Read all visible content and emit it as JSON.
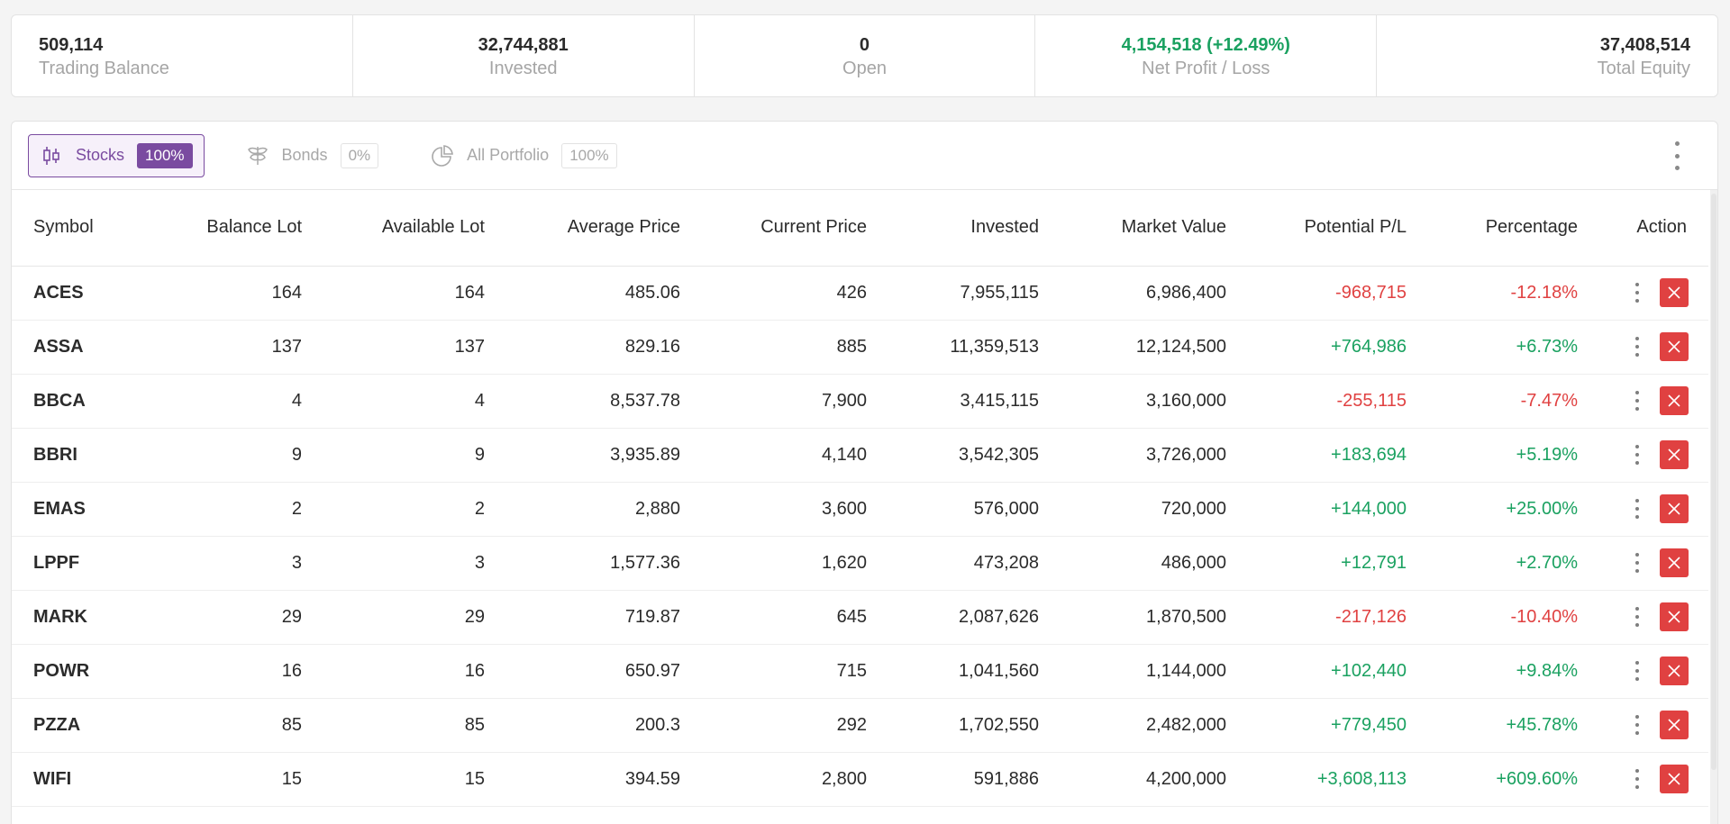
{
  "summary": [
    {
      "value": "509,114",
      "label": "Trading Balance"
    },
    {
      "value": "32,744,881",
      "label": "Invested"
    },
    {
      "value": "0",
      "label": "Open"
    },
    {
      "value": "4,154,518 (+12.49%)",
      "label": "Net Profit / Loss"
    },
    {
      "value": "37,408,514",
      "label": "Total Equity"
    }
  ],
  "tabs": [
    {
      "label": "Stocks",
      "pct": "100%",
      "icon": "candlestick-icon"
    },
    {
      "label": "Bonds",
      "pct": "0%",
      "icon": "bonds-icon"
    },
    {
      "label": "All Portfolio",
      "pct": "100%",
      "icon": "pie-chart-icon"
    }
  ],
  "colors": {
    "accent": "#7a4ba0",
    "positive": "#1aa160",
    "negative": "#e04141"
  },
  "table": {
    "headers": [
      "Symbol",
      "Balance Lot",
      "Available Lot",
      "Average Price",
      "Current Price",
      "Invested",
      "Market Value",
      "Potential P/L",
      "Percentage",
      "Action"
    ],
    "rows": [
      {
        "symbol": "ACES",
        "balance_lot": "164",
        "available_lot": "164",
        "avg_price": "485.06",
        "cur_price": "426",
        "invested": "7,955,115",
        "market_value": "6,986,400",
        "pl": "-968,715",
        "pct": "-12.18%"
      },
      {
        "symbol": "ASSA",
        "balance_lot": "137",
        "available_lot": "137",
        "avg_price": "829.16",
        "cur_price": "885",
        "invested": "11,359,513",
        "market_value": "12,124,500",
        "pl": "+764,986",
        "pct": "+6.73%"
      },
      {
        "symbol": "BBCA",
        "balance_lot": "4",
        "available_lot": "4",
        "avg_price": "8,537.78",
        "cur_price": "7,900",
        "invested": "3,415,115",
        "market_value": "3,160,000",
        "pl": "-255,115",
        "pct": "-7.47%"
      },
      {
        "symbol": "BBRI",
        "balance_lot": "9",
        "available_lot": "9",
        "avg_price": "3,935.89",
        "cur_price": "4,140",
        "invested": "3,542,305",
        "market_value": "3,726,000",
        "pl": "+183,694",
        "pct": "+5.19%"
      },
      {
        "symbol": "EMAS",
        "balance_lot": "2",
        "available_lot": "2",
        "avg_price": "2,880",
        "cur_price": "3,600",
        "invested": "576,000",
        "market_value": "720,000",
        "pl": "+144,000",
        "pct": "+25.00%"
      },
      {
        "symbol": "LPPF",
        "balance_lot": "3",
        "available_lot": "3",
        "avg_price": "1,577.36",
        "cur_price": "1,620",
        "invested": "473,208",
        "market_value": "486,000",
        "pl": "+12,791",
        "pct": "+2.70%"
      },
      {
        "symbol": "MARK",
        "balance_lot": "29",
        "available_lot": "29",
        "avg_price": "719.87",
        "cur_price": "645",
        "invested": "2,087,626",
        "market_value": "1,870,500",
        "pl": "-217,126",
        "pct": "-10.40%"
      },
      {
        "symbol": "POWR",
        "balance_lot": "16",
        "available_lot": "16",
        "avg_price": "650.97",
        "cur_price": "715",
        "invested": "1,041,560",
        "market_value": "1,144,000",
        "pl": "+102,440",
        "pct": "+9.84%"
      },
      {
        "symbol": "PZZA",
        "balance_lot": "85",
        "available_lot": "85",
        "avg_price": "200.3",
        "cur_price": "292",
        "invested": "1,702,550",
        "market_value": "2,482,000",
        "pl": "+779,450",
        "pct": "+45.78%"
      },
      {
        "symbol": "WIFI",
        "balance_lot": "15",
        "available_lot": "15",
        "avg_price": "394.59",
        "cur_price": "2,800",
        "invested": "591,886",
        "market_value": "4,200,000",
        "pl": "+3,608,113",
        "pct": "+609.60%"
      }
    ]
  }
}
